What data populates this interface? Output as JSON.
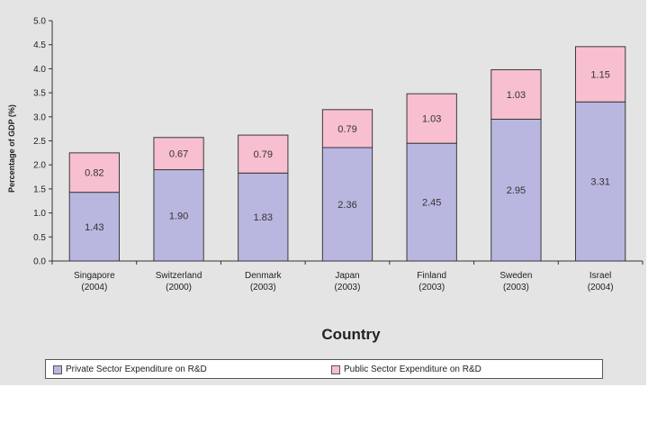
{
  "chart_data": {
    "type": "bar",
    "stacked": true,
    "ylabel": "Percentage of GDP (%)",
    "xlabel": "Country",
    "ylim": [
      0,
      5
    ],
    "y_ticks": [
      "0.0",
      "0.5",
      "1.0",
      "1.5",
      "2.0",
      "2.5",
      "3.0",
      "3.5",
      "4.0",
      "4.5",
      "5.0"
    ],
    "grid": false,
    "legend_position": "bottom",
    "categories": [
      {
        "name": "Singapore",
        "year": "(2004)"
      },
      {
        "name": "Switzerland",
        "year": "(2000)"
      },
      {
        "name": "Denmark",
        "year": "(2003)"
      },
      {
        "name": "Japan",
        "year": "(2003)"
      },
      {
        "name": "Finland",
        "year": "(2003)"
      },
      {
        "name": "Sweden",
        "year": "(2003)"
      },
      {
        "name": "Israel",
        "year": "(2004)"
      }
    ],
    "series": [
      {
        "name": "Private Sector Expenditure on R&D",
        "color": "#b9b7e0",
        "values": [
          1.43,
          1.9,
          1.83,
          2.36,
          2.45,
          2.95,
          3.31
        ],
        "labels": [
          "1.43",
          "1.90",
          "1.83",
          "2.36",
          "2.45",
          "2.95",
          "3.31"
        ]
      },
      {
        "name": "Public Sector Expenditure on R&D",
        "color": "#f7bfcf",
        "values": [
          0.82,
          0.67,
          0.79,
          0.79,
          1.03,
          1.03,
          1.15
        ],
        "labels": [
          "0.82",
          "0.67",
          "0.79",
          "0.79",
          "1.03",
          "1.03",
          "1.15"
        ]
      }
    ]
  }
}
